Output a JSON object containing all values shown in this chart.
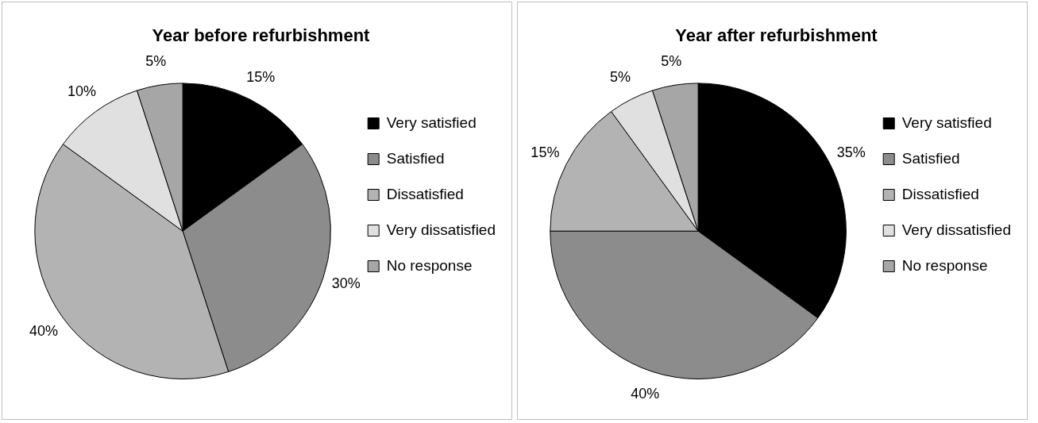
{
  "chart_data": [
    {
      "type": "pie",
      "title": "Year before refurbishment",
      "categories": [
        "Very satisfied",
        "Satisfied",
        "Dissatisfied",
        "Very dissatisfied",
        "No response"
      ],
      "values": [
        15,
        30,
        40,
        10,
        5
      ],
      "value_labels": [
        "15%",
        "30%",
        "40%",
        "10%",
        "5%"
      ],
      "colors": [
        "#000000",
        "#8c8c8c",
        "#b3b3b3",
        "#e0e0e0",
        "#a6a6a6"
      ],
      "legend": "right"
    },
    {
      "type": "pie",
      "title": "Year after refurbishment",
      "categories": [
        "Very satisfied",
        "Satisfied",
        "Dissatisfied",
        "Very dissatisfied",
        "No response"
      ],
      "values": [
        35,
        40,
        15,
        5,
        5
      ],
      "value_labels": [
        "35%",
        "40%",
        "15%",
        "5%",
        "5%"
      ],
      "colors": [
        "#000000",
        "#8c8c8c",
        "#b3b3b3",
        "#e0e0e0",
        "#a6a6a6"
      ],
      "legend": "right"
    }
  ]
}
